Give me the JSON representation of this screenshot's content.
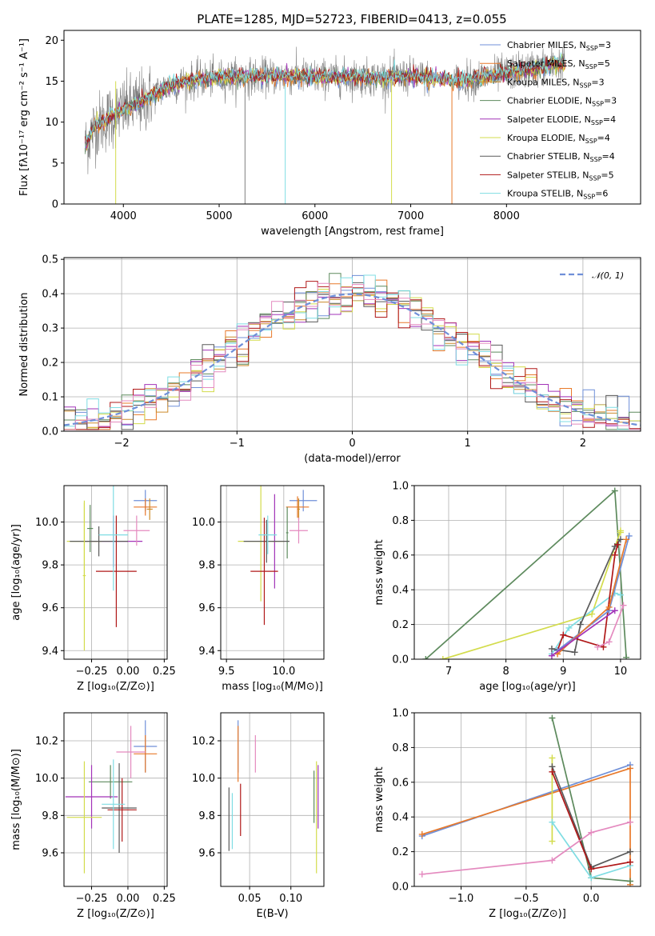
{
  "figure_title": "PLATE=1285, MJD=52723, FIBERID=0413, z=0.055",
  "colors": [
    "#6f8fd8",
    "#e8792a",
    "#cc8a2a",
    "#5d8a5d",
    "#a233b8",
    "#d3dc4c",
    "#5a5a5a",
    "#b01818",
    "#7fdde3",
    "#e48abf",
    "#808080"
  ],
  "chart_data": [
    {
      "id": "spectrum",
      "type": "line",
      "title": "PLATE=1285, MJD=52723, FIBERID=0413, z=0.055",
      "xlabel": "wavelength [Angstrom, rest frame]",
      "ylabel": "Flux [fλ10⁻¹⁷ erg cm⁻² s⁻¹ A⁻¹]",
      "xlim": [
        3380,
        9400
      ],
      "ylim": [
        0,
        21.2
      ],
      "xticks": [
        "4000",
        "5000",
        "6000",
        "7000",
        "8000"
      ],
      "xtick_values": [
        4000,
        5000,
        6000,
        7000,
        8000
      ],
      "yticks": [
        "0",
        "5",
        "10",
        "15",
        "20"
      ],
      "ytick_values": [
        0,
        5,
        10,
        15,
        20
      ],
      "continuum": {
        "x": [
          3600,
          3700,
          3850,
          4000,
          4200,
          4400,
          4600,
          4800,
          5000,
          5200,
          5500,
          5800,
          6000,
          6300,
          6600,
          7000,
          7300,
          7450,
          7700,
          8000,
          8300,
          8600
        ],
        "y": [
          7.0,
          9.5,
          10.5,
          11.5,
          12.5,
          14.0,
          14.8,
          15.2,
          15.4,
          15.5,
          15.6,
          15.6,
          15.5,
          15.5,
          15.4,
          15.6,
          15.3,
          15.0,
          15.4,
          16.0,
          16.6,
          17.2
        ]
      },
      "legend": [
        "Chabrier MILES, N_SSP=3",
        "Salpeter MILES, N_SSP=5",
        "Kroupa MILES, N_SSP=3",
        "Chabrier ELODIE, N_SSP=3",
        "Salpeter ELODIE, N_SSP=4",
        "Kroupa ELODIE, N_SSP=4",
        "Chabrier STELIB, N_SSP=4",
        "Salpeter STELIB, N_SSP=5",
        "Kroupa STELIB, N_SSP=6"
      ],
      "legend_labels": [
        {
          "pre": "Chabrier MILES, N",
          "sub": "SSP",
          "post": "=3"
        },
        {
          "pre": "Salpeter MILES, N",
          "sub": "SSP",
          "post": "=5"
        },
        {
          "pre": "Kroupa MILES, N",
          "sub": "SSP",
          "post": "=3"
        },
        {
          "pre": "Chabrier ELODIE, N",
          "sub": "SSP",
          "post": "=3"
        },
        {
          "pre": "Salpeter ELODIE, N",
          "sub": "SSP",
          "post": "=4"
        },
        {
          "pre": "Kroupa ELODIE, N",
          "sub": "SSP",
          "post": "=4"
        },
        {
          "pre": "Chabrier STELIB, N",
          "sub": "SSP",
          "post": "=4"
        },
        {
          "pre": "Salpeter STELIB, N",
          "sub": "SSP",
          "post": "=5"
        },
        {
          "pre": "Kroupa STELIB, N",
          "sub": "SSP",
          "post": "=6"
        }
      ],
      "legend_placement": "top-right",
      "grid": false
    },
    {
      "id": "residuals",
      "type": "step-histogram",
      "xlabel": "(data-model)/error",
      "ylabel": "Normed distribution",
      "xlim": [
        -2.5,
        2.5
      ],
      "ylim": [
        0,
        0.505
      ],
      "xticks": [
        "−2",
        "−1",
        "0",
        "1",
        "2"
      ],
      "xtick_values": [
        -2,
        -1,
        0,
        1,
        2
      ],
      "yticks": [
        "0.0",
        "0.1",
        "0.2",
        "0.3",
        "0.4",
        "0.5"
      ],
      "ytick_values": [
        0,
        0.1,
        0.2,
        0.3,
        0.4,
        0.5
      ],
      "bin_edges_range": [
        -2.5,
        2.5
      ],
      "bins": 50,
      "reference_curve": "N(0,1)",
      "legend_placement": "top-right",
      "grid": true
    },
    {
      "id": "age_vs_Z",
      "type": "errorbar",
      "xlabel": "Z [log₁₀(Z/Z⊙)]",
      "ylabel": "age  [log₁₀(age/yr)]",
      "xlim": [
        -0.44,
        0.27
      ],
      "ylim": [
        9.36,
        10.17
      ],
      "xticks": [
        "−0.25",
        "0.00",
        "0.25"
      ],
      "xtick_values": [
        -0.25,
        0,
        0.25
      ],
      "yticks": [
        "9.4",
        "9.6",
        "9.8",
        "10.0"
      ],
      "ytick_values": [
        9.4,
        9.6,
        9.8,
        10.0
      ],
      "points": [
        {
          "c": 0,
          "x": 0.12,
          "xe": 0.08,
          "y": 10.1,
          "ye": 0.05
        },
        {
          "c": 1,
          "x": 0.12,
          "xe": 0.08,
          "y": 10.07,
          "ye": 0.04
        },
        {
          "c": 2,
          "x": 0.15,
          "xe": 0.02,
          "y": 10.06,
          "ye": 0.05
        },
        {
          "c": 3,
          "x": -0.26,
          "xe": 0.02,
          "y": 9.97,
          "ye": 0.11
        },
        {
          "c": 4,
          "x": -0.1,
          "xe": 0.2,
          "y": 9.91,
          "ye": 0.12
        },
        {
          "c": 5,
          "x": -0.3,
          "xe": 0.12,
          "y": 9.91,
          "ye": 0.18
        },
        {
          "c": 6,
          "x": -0.2,
          "xe": 0.2,
          "y": 9.91,
          "ye": 0.07
        },
        {
          "c": 7,
          "x": -0.08,
          "xe": 0.14,
          "y": 9.77,
          "ye": 0.26
        },
        {
          "c": 8,
          "x": -0.1,
          "xe": 0.1,
          "y": 9.94,
          "ye": 0.26
        },
        {
          "c": 9,
          "x": 0.06,
          "xe": 0.09,
          "y": 9.96,
          "ye": 0.07
        },
        {
          "c": 5,
          "x": -0.3,
          "xe": 0.01,
          "y": 9.75,
          "ye": 0.35
        }
      ],
      "grid": true
    },
    {
      "id": "age_vs_mass",
      "type": "errorbar",
      "xlabel": "mass [log₁₀(M/M⊙)]",
      "ylabel": "",
      "xlim": [
        9.45,
        10.35
      ],
      "ylim": [
        9.36,
        10.17
      ],
      "xticks": [
        "9.5",
        "10.0"
      ],
      "xtick_values": [
        9.5,
        10.0
      ],
      "yticks": [
        "9.4",
        "9.6",
        "9.8",
        "10.0"
      ],
      "ytick_values": [
        9.4,
        9.6,
        9.8,
        10.0
      ],
      "points": [
        {
          "c": 0,
          "x": 10.17,
          "xe": 0.12,
          "y": 10.1,
          "ye": 0.05
        },
        {
          "c": 1,
          "x": 10.12,
          "xe": 0.1,
          "y": 10.07,
          "ye": 0.05
        },
        {
          "c": 2,
          "x": 10.13,
          "xe": 0.01,
          "y": 10.06,
          "ye": 0.05
        },
        {
          "c": 3,
          "x": 10.03,
          "xe": 0.01,
          "y": 9.95,
          "ye": 0.12
        },
        {
          "c": 4,
          "x": 9.92,
          "xe": 0.02,
          "y": 9.91,
          "ye": 0.22
        },
        {
          "c": 5,
          "x": 9.8,
          "xe": 0.2,
          "y": 9.91,
          "ye": 0.28
        },
        {
          "c": 6,
          "x": 9.85,
          "xe": 0.2,
          "y": 9.91,
          "ye": 0.1
        },
        {
          "c": 7,
          "x": 9.83,
          "xe": 0.12,
          "y": 9.77,
          "ye": 0.25
        },
        {
          "c": 8,
          "x": 9.86,
          "xe": 0.08,
          "y": 9.94,
          "ye": 0.09
        },
        {
          "c": 9,
          "x": 10.13,
          "xe": 0.08,
          "y": 9.96,
          "ye": 0.06
        }
      ],
      "grid": true
    },
    {
      "id": "weight_vs_age",
      "type": "line",
      "xlabel": "age  [log₁₀(age/yr)]",
      "ylabel": "mass weight",
      "xlim": [
        6.4,
        10.35
      ],
      "ylim": [
        0,
        1.0
      ],
      "xticks": [
        "7",
        "8",
        "9",
        "10"
      ],
      "xtick_values": [
        7,
        8,
        9,
        10
      ],
      "yticks": [
        "0.0",
        "0.2",
        "0.4",
        "0.6",
        "0.8",
        "1.0"
      ],
      "ytick_values": [
        0,
        0.2,
        0.4,
        0.6,
        0.8,
        1.0
      ],
      "series": [
        {
          "c": 3,
          "x": [
            6.6,
            9.9,
            10.1
          ],
          "y": [
            0.0,
            0.97,
            0.01
          ]
        },
        {
          "c": 5,
          "x": [
            6.9,
            9.5,
            10.0,
            10.0
          ],
          "y": [
            0.0,
            0.26,
            0.74,
            0.73
          ]
        },
        {
          "c": 8,
          "x": [
            8.8,
            9.1,
            9.9,
            10.0
          ],
          "y": [
            0.03,
            0.18,
            0.38,
            0.37
          ]
        },
        {
          "c": 6,
          "x": [
            8.8,
            9.2,
            9.3,
            9.9,
            10.0
          ],
          "y": [
            0.06,
            0.04,
            0.2,
            0.65,
            0.69
          ]
        },
        {
          "c": 7,
          "x": [
            8.9,
            9.0,
            9.7,
            9.9,
            9.95
          ],
          "y": [
            0.05,
            0.14,
            0.07,
            0.6,
            0.66
          ]
        },
        {
          "c": 0,
          "x": [
            8.9,
            9.8,
            10.15
          ],
          "y": [
            0.05,
            0.28,
            0.71
          ]
        },
        {
          "c": 1,
          "x": [
            8.9,
            9.8,
            10.1
          ],
          "y": [
            0.03,
            0.3,
            0.69
          ]
        },
        {
          "c": 9,
          "x": [
            9.6,
            9.8,
            10.05
          ],
          "y": [
            0.07,
            0.1,
            0.31
          ]
        },
        {
          "c": 4,
          "x": [
            8.8,
            9.9
          ],
          "y": [
            0.02,
            0.28
          ]
        }
      ],
      "grid": true
    },
    {
      "id": "mass_vs_Z",
      "type": "errorbar",
      "xlabel": "Z [log₁₀(Z/Z⊙)]",
      "ylabel": "mass [log₁₀(M/M⊙)]",
      "xlim": [
        -0.44,
        0.27
      ],
      "ylim": [
        9.42,
        10.35
      ],
      "xticks": [
        "−0.25",
        "0.00",
        "0.25"
      ],
      "xtick_values": [
        -0.25,
        0,
        0.25
      ],
      "yticks": [
        "9.6",
        "9.8",
        "10.0",
        "10.2"
      ],
      "ytick_values": [
        9.6,
        9.8,
        10.0,
        10.2
      ],
      "points": [
        {
          "c": 0,
          "x": 0.12,
          "xe": 0.08,
          "y": 10.17,
          "ye": 0.14
        },
        {
          "c": 1,
          "x": 0.12,
          "xe": 0.08,
          "y": 10.13,
          "ye": 0.1
        },
        {
          "c": 3,
          "x": -0.12,
          "xe": 0.15,
          "y": 9.98,
          "ye": 0.09
        },
        {
          "c": 4,
          "x": -0.25,
          "xe": 0.18,
          "y": 9.9,
          "ye": 0.17
        },
        {
          "c": 5,
          "x": -0.3,
          "xe": 0.12,
          "y": 9.79,
          "ye": 0.3
        },
        {
          "c": 6,
          "x": -0.06,
          "xe": 0.12,
          "y": 9.84,
          "ye": 0.24
        },
        {
          "c": 7,
          "x": -0.04,
          "xe": 0.1,
          "y": 9.83,
          "ye": 0.17
        },
        {
          "c": 8,
          "x": -0.1,
          "xe": 0.08,
          "y": 9.86,
          "ye": 0.24
        },
        {
          "c": 9,
          "x": 0.02,
          "xe": 0.1,
          "y": 10.14,
          "ye": 0.14
        }
      ],
      "grid": true
    },
    {
      "id": "mass_vs_EBV",
      "type": "errorbar",
      "xlabel": "E(B-V)",
      "ylabel": "",
      "xlim": [
        0.015,
        0.14
      ],
      "ylim": [
        9.42,
        10.35
      ],
      "xticks": [
        "0.05",
        "0.10"
      ],
      "xtick_values": [
        0.05,
        0.1
      ],
      "yticks": [
        "9.6",
        "9.8",
        "10.0",
        "10.2"
      ],
      "ytick_values": [
        9.6,
        9.8,
        10.0,
        10.2
      ],
      "points": [
        {
          "c": 0,
          "x": 0.036,
          "xe": 0.0,
          "y": 10.17,
          "ye": 0.14
        },
        {
          "c": 1,
          "x": 0.036,
          "xe": 0.0,
          "y": 10.13,
          "ye": 0.15
        },
        {
          "c": 3,
          "x": 0.128,
          "xe": 0.0,
          "y": 9.9,
          "ye": 0.14
        },
        {
          "c": 4,
          "x": 0.133,
          "xe": 0.0,
          "y": 9.9,
          "ye": 0.17
        },
        {
          "c": 5,
          "x": 0.131,
          "xe": 0.0,
          "y": 9.79,
          "ye": 0.3
        },
        {
          "c": 6,
          "x": 0.025,
          "xe": 0.0,
          "y": 9.78,
          "ye": 0.17
        },
        {
          "c": 7,
          "x": 0.039,
          "xe": 0.0,
          "y": 9.83,
          "ye": 0.14
        },
        {
          "c": 8,
          "x": 0.029,
          "xe": 0.0,
          "y": 9.77,
          "ye": 0.15
        },
        {
          "c": 9,
          "x": 0.057,
          "xe": 0.0,
          "y": 10.13,
          "ye": 0.1
        }
      ],
      "grid": true
    },
    {
      "id": "weight_vs_Z",
      "type": "line",
      "xlabel": "Z [log₁₀(Z/Z⊙)]",
      "ylabel": "mass weight",
      "xlim": [
        -1.36,
        0.38
      ],
      "ylim": [
        0,
        1.0
      ],
      "xticks": [
        "−1.0",
        "−0.5",
        "0.0"
      ],
      "xtick_values": [
        -1.0,
        -0.5,
        0.0
      ],
      "yticks": [
        "0.0",
        "0.2",
        "0.4",
        "0.6",
        "0.8",
        "1.0"
      ],
      "ytick_values": [
        0,
        0.2,
        0.4,
        0.6,
        0.8,
        1.0
      ],
      "series": [
        {
          "c": 0,
          "x": [
            -1.3,
            0.3
          ],
          "y": [
            0.29,
            0.7
          ]
        },
        {
          "c": 1,
          "x": [
            -1.3,
            0.3,
            0.3
          ],
          "y": [
            0.3,
            0.68,
            0.01
          ]
        },
        {
          "c": 3,
          "x": [
            -0.3,
            0.0,
            0.3
          ],
          "y": [
            0.97,
            0.05,
            0.03
          ]
        },
        {
          "c": 5,
          "x": [
            -0.3,
            -0.3
          ],
          "y": [
            0.26,
            0.74
          ]
        },
        {
          "c": 8,
          "x": [
            -0.3,
            0.0,
            0.3
          ],
          "y": [
            0.37,
            0.05,
            0.12
          ]
        },
        {
          "c": 6,
          "x": [
            -0.3,
            0.0,
            0.3
          ],
          "y": [
            0.69,
            0.11,
            0.2
          ]
        },
        {
          "c": 7,
          "x": [
            -0.3,
            0.0,
            0.3
          ],
          "y": [
            0.66,
            0.1,
            0.14
          ]
        },
        {
          "c": 9,
          "x": [
            -1.3,
            -0.3,
            0.0,
            0.3
          ],
          "y": [
            0.07,
            0.15,
            0.31,
            0.37
          ]
        }
      ],
      "grid": true
    }
  ]
}
